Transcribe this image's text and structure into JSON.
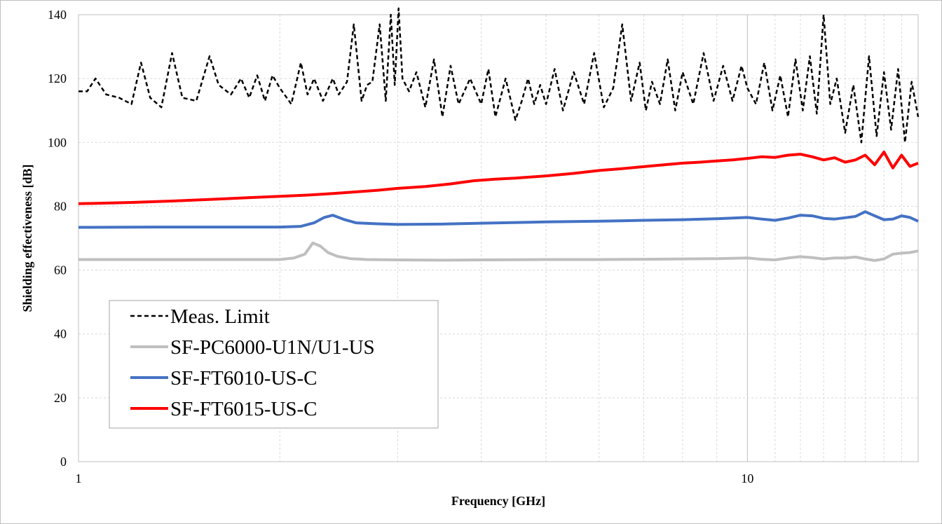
{
  "chart_data": {
    "type": "line",
    "title": "",
    "xlabel": "Frequency [GHz]",
    "ylabel": "Shielding effectiveness [dB]",
    "xscale": "log",
    "xlim": [
      1,
      18
    ],
    "ylim": [
      0,
      140
    ],
    "x_tick_labels": [
      "1",
      "10"
    ],
    "y_tick_labels": [
      "0",
      "20",
      "40",
      "60",
      "80",
      "100",
      "120",
      "140"
    ],
    "grid": true,
    "legend_position": "lower-left",
    "series": [
      {
        "name": "Meas. Limit",
        "color": "#000000",
        "style": "dashed",
        "x": [
          1.0,
          1.03,
          1.06,
          1.1,
          1.15,
          1.2,
          1.24,
          1.28,
          1.33,
          1.38,
          1.43,
          1.5,
          1.57,
          1.62,
          1.69,
          1.75,
          1.8,
          1.85,
          1.9,
          1.95,
          2.0,
          2.08,
          2.15,
          2.2,
          2.25,
          2.32,
          2.4,
          2.45,
          2.52,
          2.58,
          2.65,
          2.7,
          2.75,
          2.82,
          2.88,
          2.93,
          2.97,
          3.01,
          3.05,
          3.12,
          3.2,
          3.3,
          3.4,
          3.5,
          3.6,
          3.7,
          3.85,
          4.0,
          4.1,
          4.2,
          4.35,
          4.5,
          4.6,
          4.7,
          4.8,
          4.9,
          5.0,
          5.15,
          5.3,
          5.5,
          5.7,
          5.9,
          6.1,
          6.3,
          6.5,
          6.7,
          6.9,
          7.05,
          7.2,
          7.4,
          7.6,
          7.8,
          8.0,
          8.3,
          8.6,
          8.9,
          9.2,
          9.5,
          9.8,
          10.0,
          10.3,
          10.6,
          10.9,
          11.2,
          11.5,
          11.8,
          12.1,
          12.4,
          12.7,
          13.0,
          13.3,
          13.6,
          14.0,
          14.4,
          14.8,
          15.2,
          15.6,
          16.0,
          16.4,
          16.8,
          17.2,
          17.6,
          18.0
        ],
        "values": [
          116,
          116,
          120,
          115,
          114,
          112,
          125,
          114,
          111,
          128,
          114,
          113,
          127,
          118,
          115,
          120,
          114,
          121,
          113,
          121,
          117,
          112,
          125,
          115,
          120,
          113,
          120,
          115,
          119,
          137,
          113,
          118,
          119,
          137,
          113,
          140,
          118,
          142,
          120,
          116,
          122,
          111,
          126,
          108,
          124,
          112,
          120,
          112,
          123,
          108,
          120,
          107,
          113,
          120,
          112,
          118,
          112,
          123,
          110,
          122,
          112,
          128,
          111,
          117,
          137,
          113,
          125,
          110,
          119,
          112,
          126,
          110,
          122,
          112,
          128,
          113,
          124,
          113,
          124,
          117,
          112,
          125,
          110,
          121,
          108,
          126,
          110,
          127,
          109,
          140,
          112,
          120,
          103,
          118,
          100,
          127,
          102,
          122,
          104,
          123,
          100,
          119,
          108
        ]
      },
      {
        "name": "SF-PC6000-U1N/U1-US",
        "color": "#bfbfbf",
        "style": "solid",
        "x": [
          1.0,
          1.5,
          2.0,
          2.1,
          2.18,
          2.24,
          2.3,
          2.36,
          2.44,
          2.55,
          2.7,
          3.0,
          3.5,
          4.0,
          5.0,
          6.0,
          7.0,
          8.0,
          9.0,
          10.0,
          10.5,
          11.0,
          11.5,
          12.0,
          12.5,
          13.0,
          13.5,
          14.0,
          14.5,
          15.0,
          15.5,
          16.0,
          16.5,
          17.0,
          17.5,
          18.0
        ],
        "values": [
          63.3,
          63.3,
          63.3,
          63.8,
          65.0,
          68.5,
          67.5,
          65.5,
          64.3,
          63.6,
          63.3,
          63.2,
          63.1,
          63.2,
          63.3,
          63.3,
          63.4,
          63.5,
          63.6,
          63.8,
          63.4,
          63.2,
          63.8,
          64.2,
          63.9,
          63.5,
          63.8,
          63.8,
          64.1,
          63.5,
          63.0,
          63.5,
          65.0,
          65.3,
          65.5,
          66.0
        ]
      },
      {
        "name": "SF-FT6010-US-C",
        "color": "#4472c4",
        "style": "solid",
        "x": [
          1.0,
          1.3,
          1.6,
          2.0,
          2.15,
          2.25,
          2.33,
          2.4,
          2.5,
          2.6,
          2.8,
          3.0,
          3.5,
          4.0,
          5.0,
          6.0,
          7.0,
          8.0,
          9.0,
          10.0,
          10.5,
          11.0,
          11.5,
          12.0,
          12.5,
          13.0,
          13.5,
          14.0,
          14.5,
          15.0,
          15.5,
          16.0,
          16.5,
          17.0,
          17.5,
          18.0
        ],
        "values": [
          73.4,
          73.5,
          73.5,
          73.5,
          73.7,
          74.8,
          76.5,
          77.2,
          75.8,
          74.8,
          74.5,
          74.3,
          74.4,
          74.7,
          75.1,
          75.3,
          75.6,
          75.8,
          76.1,
          76.5,
          76.0,
          75.6,
          76.3,
          77.2,
          77.0,
          76.2,
          76.0,
          76.4,
          76.8,
          78.3,
          77.0,
          75.8,
          76.0,
          77.0,
          76.5,
          75.3
        ]
      },
      {
        "name": "SF-FT6015-US-C",
        "color": "#ff0000",
        "style": "solid",
        "x": [
          1.0,
          1.2,
          1.4,
          1.6,
          1.8,
          2.0,
          2.2,
          2.4,
          2.6,
          2.8,
          3.0,
          3.3,
          3.6,
          3.9,
          4.2,
          4.5,
          5.0,
          5.5,
          6.0,
          6.5,
          7.0,
          7.5,
          8.0,
          8.5,
          9.0,
          9.5,
          10.0,
          10.5,
          11.0,
          11.5,
          12.0,
          12.5,
          13.0,
          13.5,
          14.0,
          14.5,
          15.0,
          15.5,
          16.0,
          16.5,
          17.0,
          17.5,
          18.0
        ],
        "values": [
          80.8,
          81.2,
          81.7,
          82.2,
          82.7,
          83.1,
          83.5,
          84.0,
          84.5,
          85.0,
          85.6,
          86.2,
          87.0,
          88.0,
          88.5,
          88.8,
          89.5,
          90.3,
          91.2,
          91.8,
          92.4,
          93.0,
          93.5,
          93.8,
          94.2,
          94.5,
          95.0,
          95.5,
          95.3,
          96.0,
          96.3,
          95.5,
          94.5,
          95.2,
          93.8,
          94.5,
          96.0,
          93.0,
          97.0,
          92.0,
          96.0,
          92.5,
          93.5
        ]
      }
    ]
  }
}
